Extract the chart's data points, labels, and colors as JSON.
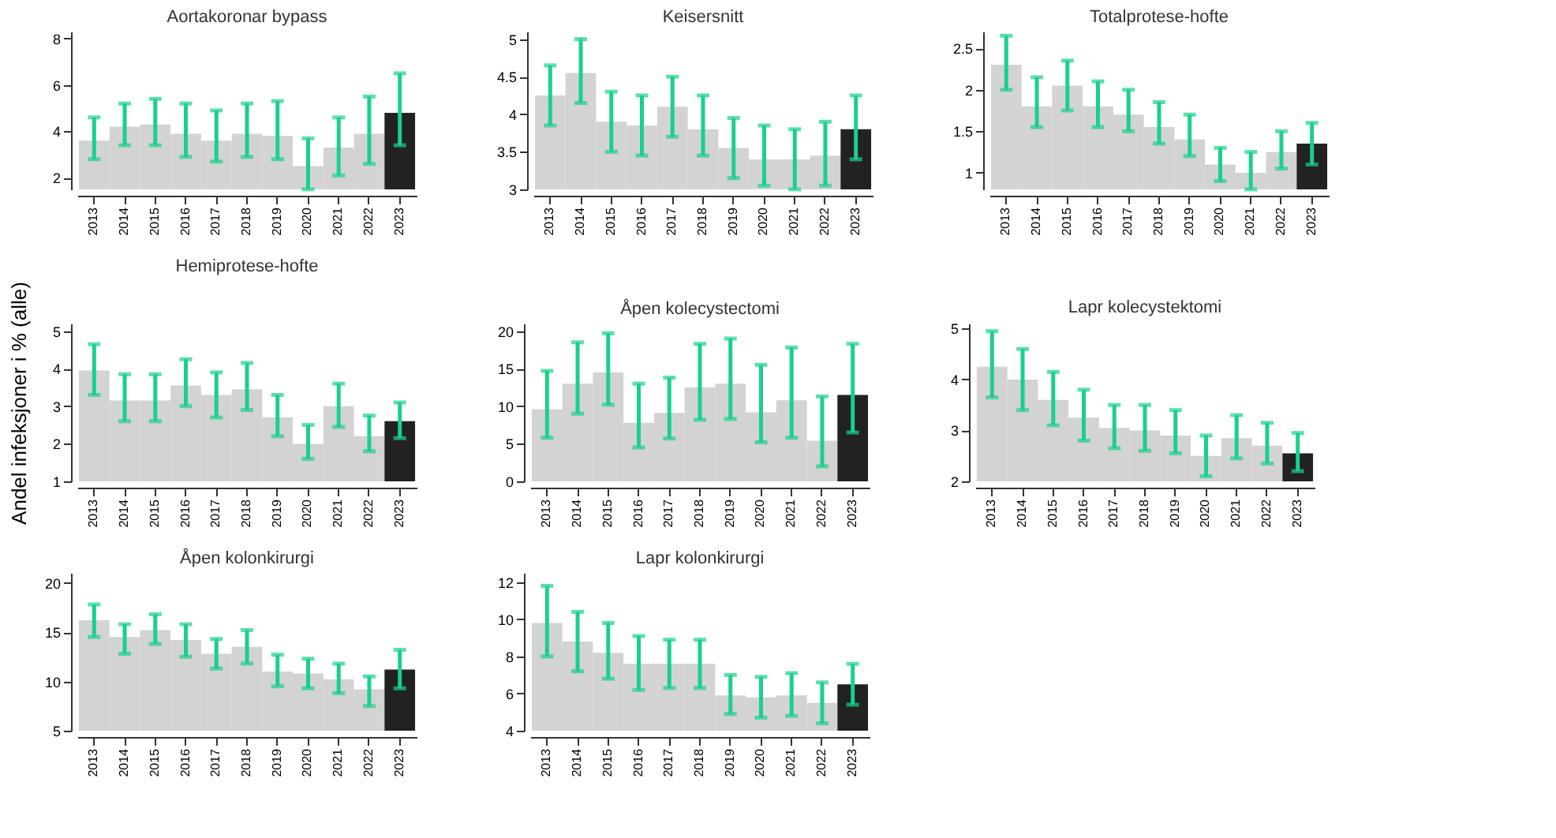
{
  "chart_data": [
    {
      "type": "bar",
      "title": "Aortakoronar bypass",
      "categories": [
        "2013",
        "2014",
        "2015",
        "2016",
        "2017",
        "2018",
        "2019",
        "2020",
        "2021",
        "2022",
        "2023"
      ],
      "values": [
        3.6,
        4.2,
        4.3,
        3.9,
        3.6,
        3.9,
        3.8,
        2.5,
        3.3,
        3.9,
        4.8
      ],
      "colors": [
        "#d3d3d3",
        "#d3d3d3",
        "#d3d3d3",
        "#d3d3d3",
        "#d3d3d3",
        "#d3d3d3",
        "#d3d3d3",
        "#d3d3d3",
        "#d3d3d3",
        "#d3d3d3",
        "#222222"
      ],
      "errors": [
        [
          2.8,
          4.6
        ],
        [
          3.4,
          5.2
        ],
        [
          3.4,
          5.4
        ],
        [
          2.9,
          5.2
        ],
        [
          2.7,
          4.9
        ],
        [
          2.9,
          5.2
        ],
        [
          2.8,
          5.3
        ],
        [
          1.5,
          3.7
        ],
        [
          2.1,
          4.6
        ],
        [
          2.6,
          5.5
        ],
        [
          3.4,
          6.5
        ]
      ],
      "ylim": [
        1.5,
        8.3
      ],
      "yticks": [
        2,
        4,
        6,
        8
      ],
      "grid": false
    },
    {
      "type": "bar",
      "title": "Keisersnitt",
      "categories": [
        "2013",
        "2014",
        "2015",
        "2016",
        "2017",
        "2018",
        "2019",
        "2020",
        "2021",
        "2022",
        "2023"
      ],
      "values": [
        4.25,
        4.55,
        3.9,
        3.85,
        4.1,
        3.8,
        3.55,
        3.4,
        3.4,
        3.45,
        3.8
      ],
      "colors": [
        "#d3d3d3",
        "#d3d3d3",
        "#d3d3d3",
        "#d3d3d3",
        "#d3d3d3",
        "#d3d3d3",
        "#d3d3d3",
        "#d3d3d3",
        "#d3d3d3",
        "#d3d3d3",
        "#222222"
      ],
      "errors": [
        [
          3.85,
          4.65
        ],
        [
          4.15,
          5.0
        ],
        [
          3.5,
          4.3
        ],
        [
          3.45,
          4.25
        ],
        [
          3.7,
          4.5
        ],
        [
          3.45,
          4.25
        ],
        [
          3.15,
          3.95
        ],
        [
          3.05,
          3.85
        ],
        [
          3.0,
          3.8
        ],
        [
          3.05,
          3.9
        ],
        [
          3.4,
          4.25
        ]
      ],
      "ylim": [
        3,
        5.1
      ],
      "yticks": [
        3,
        3.5,
        4,
        4.5,
        5
      ],
      "grid": false
    },
    {
      "type": "bar",
      "title": "Totalprotese-hofte",
      "categories": [
        "2013",
        "2014",
        "2015",
        "2016",
        "2017",
        "2018",
        "2019",
        "2020",
        "2021",
        "2022",
        "2023"
      ],
      "values": [
        2.3,
        1.8,
        2.05,
        1.8,
        1.7,
        1.55,
        1.4,
        1.1,
        1.0,
        1.25,
        1.35
      ],
      "colors": [
        "#d3d3d3",
        "#d3d3d3",
        "#d3d3d3",
        "#d3d3d3",
        "#d3d3d3",
        "#d3d3d3",
        "#d3d3d3",
        "#d3d3d3",
        "#d3d3d3",
        "#d3d3d3",
        "#222222"
      ],
      "errors": [
        [
          2.0,
          2.65
        ],
        [
          1.55,
          2.15
        ],
        [
          1.75,
          2.35
        ],
        [
          1.55,
          2.1
        ],
        [
          1.5,
          2.0
        ],
        [
          1.35,
          1.85
        ],
        [
          1.2,
          1.7
        ],
        [
          0.9,
          1.3
        ],
        [
          0.8,
          1.25
        ],
        [
          1.05,
          1.5
        ],
        [
          1.1,
          1.6
        ]
      ],
      "ylim": [
        0.8,
        2.7
      ],
      "yticks": [
        1,
        1.5,
        2,
        2.5
      ],
      "grid": false
    },
    {
      "type": "bar",
      "title": "Hemiprotese-hofte",
      "ylabel": "Andel infeksjoner i % (alle)",
      "categories": [
        "2013",
        "2014",
        "2015",
        "2016",
        "2017",
        "2018",
        "2019",
        "2020",
        "2021",
        "2022",
        "2023"
      ],
      "values": [
        3.95,
        3.15,
        3.15,
        3.55,
        3.3,
        3.45,
        2.7,
        2.0,
        3.0,
        2.2,
        2.6
      ],
      "colors": [
        "#d3d3d3",
        "#d3d3d3",
        "#d3d3d3",
        "#d3d3d3",
        "#d3d3d3",
        "#d3d3d3",
        "#d3d3d3",
        "#d3d3d3",
        "#d3d3d3",
        "#d3d3d3",
        "#222222"
      ],
      "errors": [
        [
          3.3,
          4.65
        ],
        [
          2.6,
          3.85
        ],
        [
          2.6,
          3.85
        ],
        [
          3.0,
          4.25
        ],
        [
          2.7,
          3.9
        ],
        [
          2.9,
          4.15
        ],
        [
          2.2,
          3.3
        ],
        [
          1.6,
          2.5
        ],
        [
          2.45,
          3.6
        ],
        [
          1.8,
          2.75
        ],
        [
          2.15,
          3.1
        ]
      ],
      "ylim": [
        1,
        5.2
      ],
      "yticks": [
        1,
        2,
        3,
        4,
        5
      ],
      "grid": false
    },
    {
      "type": "bar",
      "title": "Åpen kolecystectomi",
      "categories": [
        "2013",
        "2014",
        "2015",
        "2016",
        "2017",
        "2018",
        "2019",
        "2020",
        "2021",
        "2022",
        "2023"
      ],
      "values": [
        9.6,
        13,
        14.5,
        7.8,
        9.1,
        12.5,
        13,
        9.2,
        10.8,
        5.4,
        11.5
      ],
      "colors": [
        "#d3d3d3",
        "#d3d3d3",
        "#d3d3d3",
        "#d3d3d3",
        "#d3d3d3",
        "#d3d3d3",
        "#d3d3d3",
        "#d3d3d3",
        "#d3d3d3",
        "#d3d3d3",
        "#222222"
      ],
      "errors": [
        [
          5.8,
          14.7
        ],
        [
          9,
          18.5
        ],
        [
          10.2,
          19.7
        ],
        [
          4.5,
          13
        ],
        [
          5.7,
          13.8
        ],
        [
          8.2,
          18.3
        ],
        [
          8.3,
          19
        ],
        [
          5.2,
          15.5
        ],
        [
          5.8,
          17.8
        ],
        [
          2,
          11.3
        ],
        [
          6.5,
          18.3
        ]
      ],
      "ylim": [
        0,
        21
      ],
      "yticks": [
        0,
        5,
        10,
        15,
        20
      ],
      "grid": false
    },
    {
      "type": "bar",
      "title": "Lapr kolecystektomi",
      "categories": [
        "2013",
        "2014",
        "2015",
        "2016",
        "2017",
        "2018",
        "2019",
        "2020",
        "2021",
        "2022",
        "2023"
      ],
      "values": [
        4.25,
        4.0,
        3.6,
        3.25,
        3.05,
        3.0,
        2.9,
        2.5,
        2.85,
        2.7,
        2.55
      ],
      "colors": [
        "#d3d3d3",
        "#d3d3d3",
        "#d3d3d3",
        "#d3d3d3",
        "#d3d3d3",
        "#d3d3d3",
        "#d3d3d3",
        "#d3d3d3",
        "#d3d3d3",
        "#d3d3d3",
        "#222222"
      ],
      "errors": [
        [
          3.65,
          4.95
        ],
        [
          3.4,
          4.6
        ],
        [
          3.1,
          4.15
        ],
        [
          2.8,
          3.8
        ],
        [
          2.65,
          3.5
        ],
        [
          2.6,
          3.5
        ],
        [
          2.55,
          3.4
        ],
        [
          2.1,
          2.9
        ],
        [
          2.45,
          3.3
        ],
        [
          2.35,
          3.15
        ],
        [
          2.2,
          2.95
        ]
      ],
      "ylim": [
        2,
        5.1
      ],
      "yticks": [
        2,
        3,
        4,
        5
      ],
      "grid": false
    },
    {
      "type": "bar",
      "title": "Åpen kolonkirurgi",
      "categories": [
        "2013",
        "2014",
        "2015",
        "2016",
        "2017",
        "2018",
        "2019",
        "2020",
        "2021",
        "2022",
        "2023"
      ],
      "values": [
        16.2,
        14.5,
        15.2,
        14.2,
        12.8,
        13.5,
        11.0,
        10.8,
        10.2,
        9.2,
        11.2
      ],
      "colors": [
        "#d3d3d3",
        "#d3d3d3",
        "#d3d3d3",
        "#d3d3d3",
        "#d3d3d3",
        "#d3d3d3",
        "#d3d3d3",
        "#d3d3d3",
        "#d3d3d3",
        "#d3d3d3",
        "#222222"
      ],
      "errors": [
        [
          14.5,
          17.8
        ],
        [
          12.8,
          15.8
        ],
        [
          13.8,
          16.8
        ],
        [
          12.5,
          15.8
        ],
        [
          11.3,
          14.3
        ],
        [
          11.8,
          15.2
        ],
        [
          9.5,
          12.7
        ],
        [
          9.3,
          12.3
        ],
        [
          8.8,
          11.8
        ],
        [
          7.5,
          10.5
        ],
        [
          9.3,
          13.2
        ]
      ],
      "ylim": [
        5,
        21
      ],
      "yticks": [
        5,
        10,
        15,
        20
      ],
      "grid": false
    },
    {
      "type": "bar",
      "title": "Lapr kolonkirurgi",
      "categories": [
        "2013",
        "2014",
        "2015",
        "2016",
        "2017",
        "2018",
        "2019",
        "2020",
        "2021",
        "2022",
        "2023"
      ],
      "values": [
        9.8,
        8.8,
        8.2,
        7.6,
        7.6,
        7.6,
        5.9,
        5.8,
        5.9,
        5.5,
        6.5
      ],
      "colors": [
        "#d3d3d3",
        "#d3d3d3",
        "#d3d3d3",
        "#d3d3d3",
        "#d3d3d3",
        "#d3d3d3",
        "#d3d3d3",
        "#d3d3d3",
        "#d3d3d3",
        "#d3d3d3",
        "#222222"
      ],
      "errors": [
        [
          8,
          11.8
        ],
        [
          7.2,
          10.4
        ],
        [
          6.8,
          9.8
        ],
        [
          6.2,
          9.1
        ],
        [
          6.3,
          8.9
        ],
        [
          6.3,
          8.9
        ],
        [
          4.9,
          7.0
        ],
        [
          4.7,
          6.9
        ],
        [
          4.8,
          7.1
        ],
        [
          4.4,
          6.6
        ],
        [
          5.4,
          7.6
        ]
      ],
      "ylim": [
        4,
        12.5
      ],
      "yticks": [
        4,
        6,
        8,
        10,
        12
      ],
      "grid": false
    }
  ]
}
